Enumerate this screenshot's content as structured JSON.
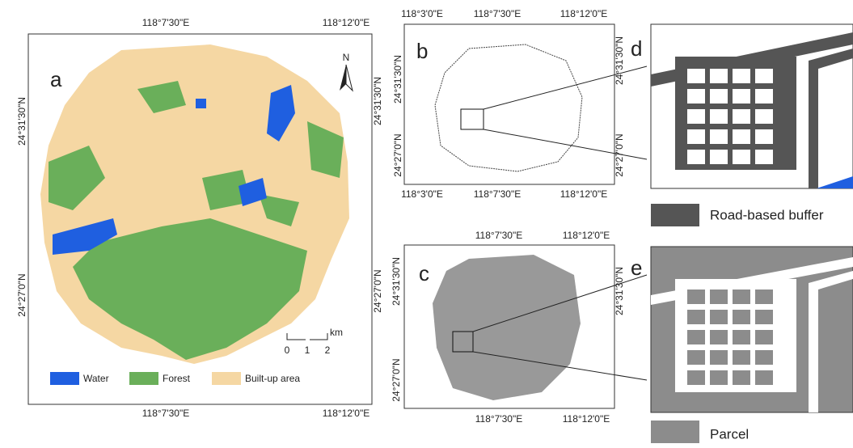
{
  "panels": [
    {
      "label": "a",
      "top": [
        "118°7'30\"E",
        "118°12'0\"E"
      ],
      "bottom": [
        "118°7'30\"E",
        "118°12'0\"E"
      ],
      "left": [
        "24°31'30\"N",
        "24°27'0\"N"
      ],
      "right": [
        "24°31'30\"N",
        "24°27'0\"N"
      ],
      "north": "N",
      "scale": {
        "unit": "km",
        "ticks": [
          "0",
          "1",
          "2"
        ]
      },
      "legend": [
        "Water",
        "Forest",
        "Built-up area"
      ]
    },
    {
      "label": "b",
      "top": [
        "118°3'0\"E",
        "118°7'30\"E",
        "118°12'0\"E"
      ],
      "bottom": [
        "118°3'0\"E",
        "118°7'30\"E",
        "118°12'0\"E"
      ],
      "left": [
        "24°31'30\"N",
        "24°27'0\"N"
      ],
      "right": [
        "24°31'30\"N",
        "24°27'0\"N"
      ]
    },
    {
      "label": "c",
      "top": [
        "118°7'30\"E",
        "118°12'0\"E"
      ],
      "bottom": [
        "118°7'30\"E",
        "118°12'0\"E"
      ],
      "left": [
        "24°31'30\"N",
        "24°27'0\"N"
      ],
      "right": [
        "24°31'30\"N"
      ]
    },
    {
      "label": "d",
      "legend": "Road-based buffer"
    },
    {
      "label": "e",
      "legend": "Parcel"
    }
  ]
}
